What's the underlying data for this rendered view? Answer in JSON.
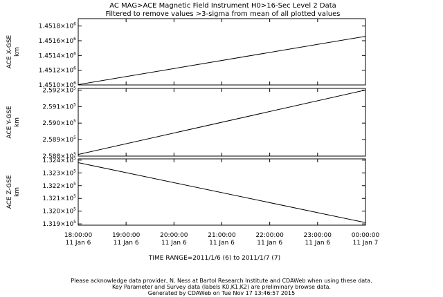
{
  "header": {
    "title": "AC  MAG>ACE Magnetic Field Instrument  H0>16-Sec Level 2 Data",
    "subtitle": "Filtered to remove values >3-sigma from mean of all plotted values"
  },
  "time_range": "TIME RANGE=2011/1/6 (6) to 2011/1/7 (7)",
  "footer": [
    "Please acknowledge data provider, N. Ness at Bartol Research Institute and CDAWeb when using these data.",
    "Key Parameter and Survey data (labels K0,K1,K2) are preliminary browse data.",
    "Generated by CDAWeb on Tue Nov 17 13:46:57 2015"
  ],
  "chart_data": {
    "type": "line",
    "x_ticks": [
      {
        "time": "18:00:00",
        "date": "11 Jan  6"
      },
      {
        "time": "19:00:00",
        "date": "11 Jan  6"
      },
      {
        "time": "20:00:00",
        "date": "11 Jan  6"
      },
      {
        "time": "21:00:00",
        "date": "11 Jan  6"
      },
      {
        "time": "22:00:00",
        "date": "11 Jan  6"
      },
      {
        "time": "23:00:00",
        "date": "11 Jan  6"
      },
      {
        "time": "00:00:00",
        "date": "11 Jan  7"
      }
    ],
    "x": [
      "2011-01-06 18:00:00",
      "2011-01-07 00:00:00"
    ],
    "xlim": [
      "2011-01-06 18:00:00",
      "2011-01-07 00:00:00"
    ],
    "grid": false,
    "panels": [
      {
        "ylabel": "ACE X-GSE",
        "units": "km",
        "ylim": [
          1451000,
          1451900
        ],
        "yticks": [
          1451000,
          1451200,
          1451400,
          1451600,
          1451800
        ],
        "ytick_labels": [
          {
            "mantissa": "1.4510×10",
            "exp": "6"
          },
          {
            "mantissa": "1.4512×10",
            "exp": "6"
          },
          {
            "mantissa": "1.4514×10",
            "exp": "6"
          },
          {
            "mantissa": "1.4516×10",
            "exp": "6"
          },
          {
            "mantissa": "1.4518×10",
            "exp": "6"
          }
        ],
        "values": [
          1451005,
          1451660
        ]
      },
      {
        "ylabel": "ACE Y-GSE",
        "units": "km",
        "ylim": [
          258800,
          259210
        ],
        "yticks": [
          258800,
          258900,
          259000,
          259100,
          259200
        ],
        "ytick_labels": [
          {
            "mantissa": "2.588×10",
            "exp": "5"
          },
          {
            "mantissa": "2.589×10",
            "exp": "5"
          },
          {
            "mantissa": "2.590×10",
            "exp": "5"
          },
          {
            "mantissa": "2.591×10",
            "exp": "5"
          },
          {
            "mantissa": "2.592×10",
            "exp": "5"
          }
        ],
        "values": [
          258810,
          259200
        ]
      },
      {
        "ylabel": "ACE Z-GSE",
        "units": "km",
        "ylim": [
          131890,
          132410
        ],
        "yticks": [
          131900,
          132000,
          132100,
          132200,
          132300,
          132400
        ],
        "ytick_labels": [
          {
            "mantissa": "1.319×10",
            "exp": "5"
          },
          {
            "mantissa": "1.320×10",
            "exp": "5"
          },
          {
            "mantissa": "1.321×10",
            "exp": "5"
          },
          {
            "mantissa": "1.322×10",
            "exp": "5"
          },
          {
            "mantissa": "1.323×10",
            "exp": "5"
          },
          {
            "mantissa": "1.324×10",
            "exp": "5"
          }
        ],
        "values": [
          132380,
          131910
        ]
      }
    ]
  }
}
